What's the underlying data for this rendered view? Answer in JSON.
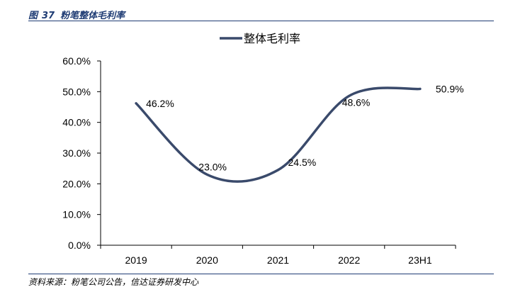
{
  "figure": {
    "label": "图",
    "number": "37",
    "title": "粉笔整体毛利率",
    "source": "资料来源：粉笔公司公告，信达证券研发中心"
  },
  "chart_data": {
    "type": "line",
    "title": "",
    "xlabel": "",
    "ylabel": "",
    "categories": [
      "2019",
      "2020",
      "2021",
      "2022",
      "23H1"
    ],
    "series": [
      {
        "name": "整体毛利率",
        "values": [
          46.2,
          23.0,
          24.5,
          48.6,
          50.9
        ],
        "labels": [
          "46.2%",
          "23.0%",
          "24.5%",
          "48.6%",
          "50.9%"
        ],
        "color": "#3a4a6b"
      }
    ],
    "ylim": [
      0,
      60
    ],
    "yticks": [
      "0.0%",
      "10.0%",
      "20.0%",
      "30.0%",
      "40.0%",
      "50.0%",
      "60.0%"
    ],
    "grid": false,
    "legend": "top-center",
    "smooth": true
  }
}
